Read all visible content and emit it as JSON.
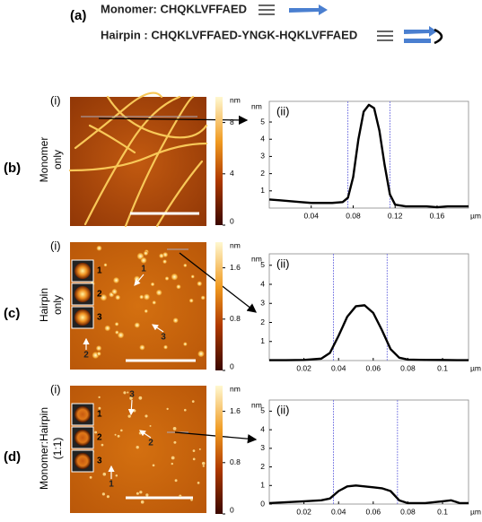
{
  "header": {
    "label": "(a)",
    "monomer": "Monomer: CHQKLVFFAED",
    "hairpin": "Hairpin : CHQKLVFFAED-YNGK-HQKLVFFAED"
  },
  "panels": [
    {
      "label": "(b)",
      "side": [
        "Monomer",
        "only"
      ],
      "image_label": "(i)",
      "colorbar": {
        "unit": "nm",
        "lim": [
          0,
          10
        ],
        "ticks": [
          0,
          4,
          8
        ]
      }
    },
    {
      "label": "(c)",
      "side": [
        "Hairpin",
        "only"
      ],
      "image_label": "(i)",
      "colorbar": {
        "unit": "nm",
        "lim": [
          0,
          2
        ],
        "ticks": [
          0,
          0.8,
          1.6
        ]
      },
      "insets": [
        "1",
        "2",
        "3"
      ],
      "arrows": [
        "1",
        "3",
        "2"
      ]
    },
    {
      "label": "(d)",
      "side": [
        "Monomer:Hairpin",
        "(1:1)"
      ],
      "image_label": "(i)",
      "colorbar": {
        "unit": "nm",
        "lim": [
          0,
          2
        ],
        "ticks": [
          0,
          0.8,
          1.6
        ]
      },
      "insets": [
        "1",
        "2",
        "3"
      ],
      "arrows": [
        "3",
        "2",
        "1"
      ]
    }
  ],
  "chart_data": [
    {
      "type": "line",
      "panel_label": "(ii)",
      "y_unit": "nm",
      "x_unit": "µm",
      "color": "#000000",
      "x": [
        0,
        0.01,
        0.02,
        0.03,
        0.04,
        0.05,
        0.06,
        0.07,
        0.075,
        0.08,
        0.085,
        0.09,
        0.095,
        0.1,
        0.105,
        0.11,
        0.115,
        0.12,
        0.13,
        0.14,
        0.15,
        0.16,
        0.17,
        0.18,
        0.19
      ],
      "values": [
        0.5,
        0.45,
        0.4,
        0.35,
        0.3,
        0.3,
        0.3,
        0.35,
        0.6,
        1.8,
        4,
        5.6,
        6,
        5.8,
        4.5,
        2.5,
        0.8,
        0.2,
        0.1,
        0.1,
        0.1,
        0.05,
        0.1,
        0.1,
        0.1
      ],
      "xlim": [
        0,
        0.19
      ],
      "xticks": [
        0.04,
        0.08,
        0.12,
        0.16
      ],
      "ylim": [
        0,
        6.2
      ],
      "yticks": [
        1,
        2,
        3,
        4,
        5
      ],
      "vlines": [
        0.075,
        0.115
      ]
    },
    {
      "type": "line",
      "panel_label": "(ii)",
      "y_unit": "nm",
      "x_unit": "µm",
      "color": "#000000",
      "x": [
        0,
        0.01,
        0.02,
        0.03,
        0.035,
        0.04,
        0.045,
        0.05,
        0.055,
        0.06,
        0.065,
        0.07,
        0.075,
        0.08,
        0.09,
        0.1,
        0.11,
        0.115
      ],
      "values": [
        0.02,
        0.02,
        0.03,
        0.1,
        0.4,
        1.3,
        2.3,
        2.85,
        2.9,
        2.5,
        1.6,
        0.6,
        0.15,
        0.05,
        0.03,
        0.03,
        0.02,
        0.02
      ],
      "xlim": [
        0,
        0.115
      ],
      "xticks": [
        0.02,
        0.04,
        0.06,
        0.08,
        0.1
      ],
      "ylim": [
        0,
        5.6
      ],
      "yticks": [
        1,
        2,
        3,
        4,
        5
      ],
      "vlines": [
        0.037,
        0.068
      ]
    },
    {
      "type": "line",
      "panel_label": "(ii)",
      "y_unit": "nm",
      "x_unit": "µm",
      "color": "#000000",
      "x": [
        0,
        0.01,
        0.02,
        0.03,
        0.035,
        0.04,
        0.045,
        0.05,
        0.055,
        0.06,
        0.065,
        0.07,
        0.075,
        0.08,
        0.09,
        0.1,
        0.105,
        0.11,
        0.115
      ],
      "values": [
        0.05,
        0.1,
        0.15,
        0.2,
        0.3,
        0.7,
        0.95,
        1.0,
        0.95,
        0.9,
        0.85,
        0.7,
        0.2,
        0.05,
        0.05,
        0.15,
        0.2,
        0.05,
        0.05
      ],
      "xlim": [
        0,
        0.115
      ],
      "xticks": [
        0.02,
        0.04,
        0.06,
        0.08,
        0.1
      ],
      "ylim": [
        0,
        5.6
      ],
      "yticks": [
        0,
        1,
        2,
        3,
        4,
        5
      ],
      "vlines": [
        0.037,
        0.074
      ]
    }
  ]
}
